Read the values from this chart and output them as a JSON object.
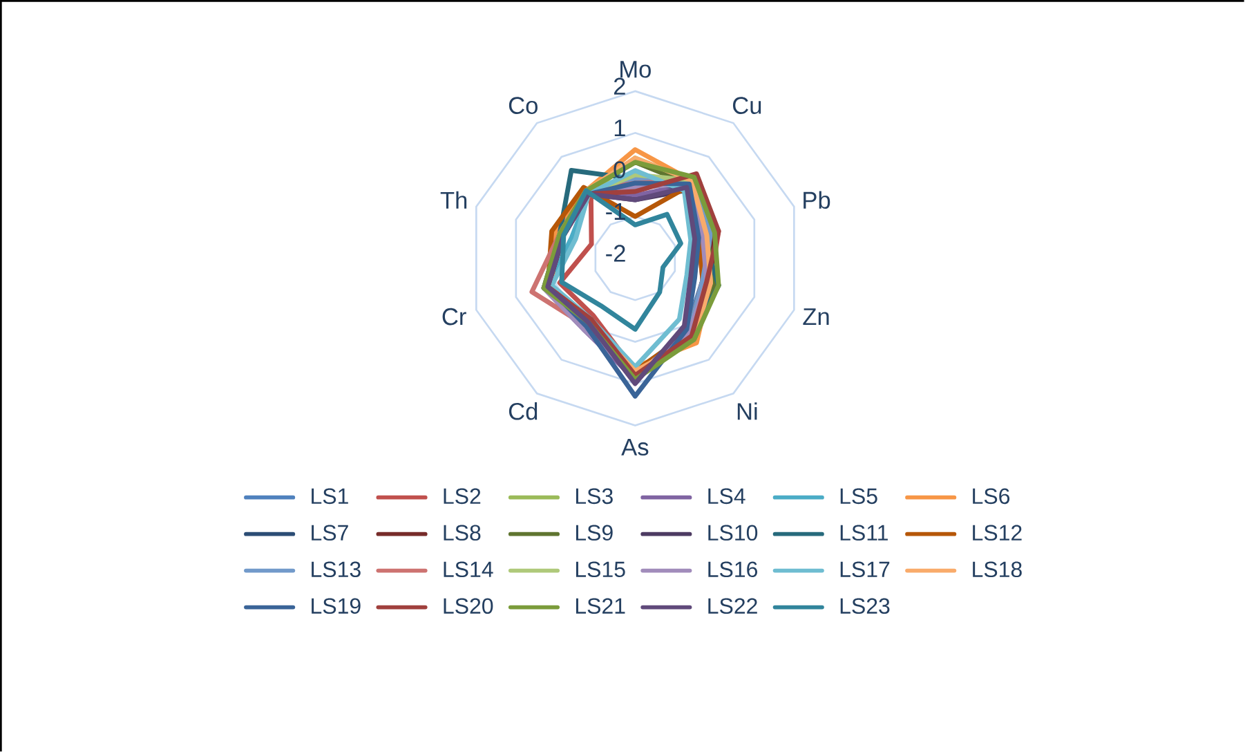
{
  "chart_data": {
    "type": "radar",
    "categories": [
      "Mo",
      "Cu",
      "Pb",
      "Zn",
      "Ni",
      "As",
      "Cd",
      "Cr",
      "Th",
      "Co"
    ],
    "ylim": [
      -2,
      2
    ],
    "yticks": [
      -2,
      -1,
      0,
      1,
      2
    ],
    "grid": true,
    "legend": "bottom",
    "series": [
      {
        "name": "LS1",
        "color": "#4f81bd",
        "values": [
          -0.1,
          0.3,
          -0.2,
          -0.3,
          0.1,
          0.9,
          -0.1,
          0.2,
          -0.2,
          -0.1
        ]
      },
      {
        "name": "LS2",
        "color": "#c0504d",
        "values": [
          -0.2,
          0.4,
          0.1,
          -0.1,
          0.3,
          0.7,
          -0.3,
          -0.1,
          -0.9,
          -0.2
        ]
      },
      {
        "name": "LS3",
        "color": "#9bbb59",
        "values": [
          0.4,
          0.3,
          -0.1,
          0.1,
          0.3,
          0.8,
          -0.1,
          0.2,
          -0.1,
          -0.1
        ]
      },
      {
        "name": "LS4",
        "color": "#8064a2",
        "values": [
          -0.5,
          0.2,
          -0.4,
          -0.3,
          0.2,
          0.9,
          0.1,
          0.3,
          -0.2,
          -0.1
        ]
      },
      {
        "name": "LS5",
        "color": "#4bacc6",
        "values": [
          0.0,
          0.2,
          -0.1,
          -0.2,
          0.2,
          0.7,
          -0.2,
          0.2,
          -0.4,
          -0.1
        ]
      },
      {
        "name": "LS6",
        "color": "#f79646",
        "values": [
          0.6,
          0.3,
          -0.3,
          -0.1,
          0.5,
          0.6,
          -0.1,
          0.1,
          0.0,
          0.0
        ]
      },
      {
        "name": "LS7",
        "color": "#2c4d75",
        "values": [
          -0.2,
          0.1,
          -0.3,
          0.1,
          0.3,
          0.8,
          -0.1,
          0.3,
          -0.1,
          0.0
        ]
      },
      {
        "name": "LS8",
        "color": "#772c2a",
        "values": [
          -0.3,
          0.4,
          0.0,
          -0.1,
          0.2,
          0.9,
          -0.2,
          0.2,
          -0.2,
          -0.1
        ]
      },
      {
        "name": "LS9",
        "color": "#5f7530",
        "values": [
          0.3,
          0.2,
          -0.2,
          0.0,
          0.4,
          0.7,
          -0.1,
          0.2,
          -0.1,
          0.0
        ]
      },
      {
        "name": "LS10",
        "color": "#4d3b62",
        "values": [
          -0.6,
          0.0,
          -0.5,
          -0.6,
          0.1,
          0.9,
          -0.1,
          0.2,
          -0.2,
          -0.1
        ]
      },
      {
        "name": "LS11",
        "color": "#276a7c",
        "values": [
          -0.1,
          0.2,
          -0.3,
          0.1,
          0.3,
          0.8,
          0.0,
          0.2,
          -0.1,
          0.6
        ]
      },
      {
        "name": "LS12",
        "color": "#b65708",
        "values": [
          -1.0,
          0.1,
          -0.4,
          -0.3,
          0.2,
          0.7,
          -0.2,
          0.2,
          0.1,
          0.1
        ]
      },
      {
        "name": "LS13",
        "color": "#729aca",
        "values": [
          -0.1,
          0.3,
          -0.1,
          -0.3,
          0.2,
          0.8,
          -0.1,
          0.3,
          -0.2,
          -0.1
        ]
      },
      {
        "name": "LS14",
        "color": "#cd7371",
        "values": [
          -0.2,
          0.3,
          -0.2,
          -0.2,
          0.3,
          0.8,
          0.0,
          0.6,
          -0.1,
          0.0
        ]
      },
      {
        "name": "LS15",
        "color": "#afc97a",
        "values": [
          0.0,
          0.3,
          -0.2,
          -0.1,
          0.2,
          0.8,
          -0.1,
          0.2,
          -0.1,
          -0.1
        ]
      },
      {
        "name": "LS16",
        "color": "#a18cbb",
        "values": [
          -0.3,
          0.2,
          -0.3,
          -0.2,
          0.2,
          0.8,
          0.1,
          0.3,
          -0.2,
          -0.1
        ]
      },
      {
        "name": "LS17",
        "color": "#6fbdd1",
        "values": [
          0.1,
          0.0,
          -0.6,
          -0.7,
          -0.2,
          0.6,
          -0.2,
          0.1,
          -0.5,
          -0.1
        ]
      },
      {
        "name": "LS18",
        "color": "#f9ab6b",
        "values": [
          0.4,
          0.3,
          -0.2,
          -0.1,
          0.4,
          0.7,
          -0.1,
          0.2,
          -0.1,
          0.0
        ]
      },
      {
        "name": "LS19",
        "color": "#3a6498",
        "values": [
          -0.2,
          0.2,
          -0.4,
          -0.5,
          0.1,
          1.3,
          0.0,
          0.2,
          -0.2,
          -0.1
        ]
      },
      {
        "name": "LS20",
        "color": "#a0403d",
        "values": [
          -0.4,
          0.5,
          0.1,
          -0.2,
          0.3,
          0.8,
          -0.2,
          0.2,
          -0.2,
          -0.1
        ]
      },
      {
        "name": "LS21",
        "color": "#7b9c3b",
        "values": [
          0.3,
          0.4,
          0.0,
          0.1,
          0.4,
          0.9,
          -0.1,
          0.3,
          -0.1,
          0.0
        ]
      },
      {
        "name": "LS22",
        "color": "#604a7b",
        "values": [
          -0.6,
          0.1,
          -0.5,
          -0.6,
          0.0,
          1.0,
          -0.1,
          0.2,
          -0.2,
          -0.1
        ]
      },
      {
        "name": "LS23",
        "color": "#31859c",
        "values": [
          -1.2,
          -0.7,
          -0.85,
          -1.3,
          -1.0,
          -0.3,
          -0.6,
          -0.15,
          -0.2,
          0.0
        ]
      }
    ]
  }
}
